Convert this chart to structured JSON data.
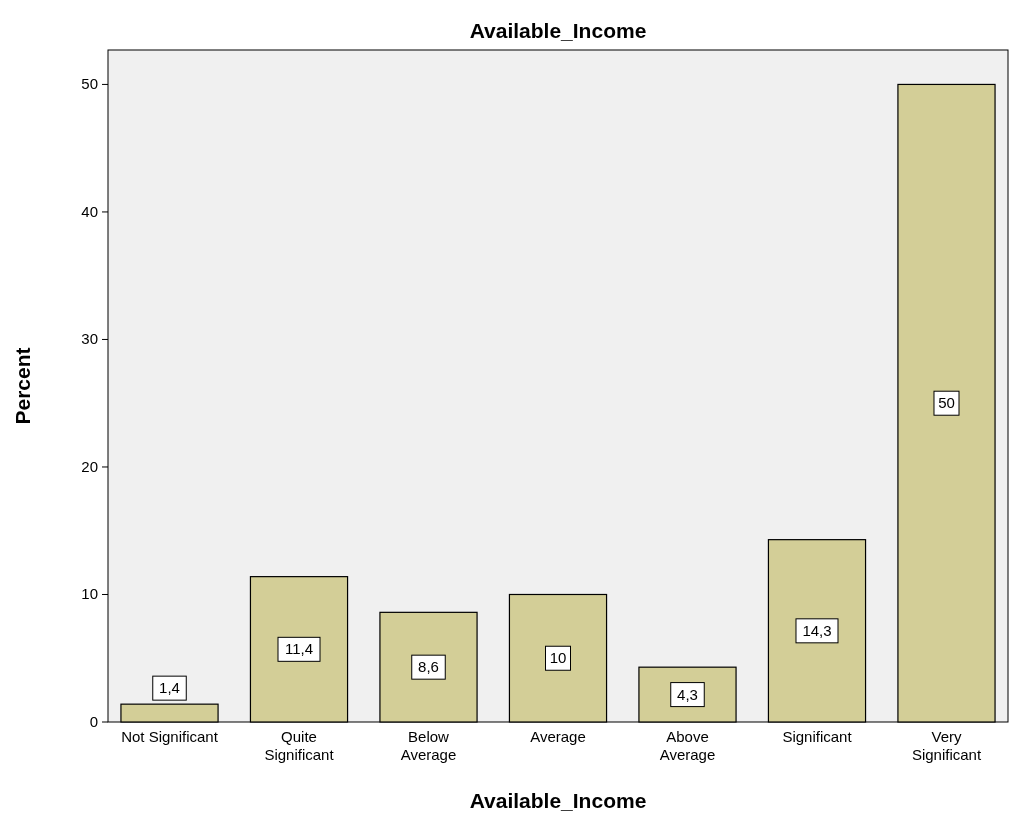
{
  "chart_data": {
    "type": "bar",
    "title": "Available_Income",
    "xlabel": "Available_Income",
    "ylabel": "Percent",
    "categories": [
      "Not Significant",
      "Quite\nSignificant",
      "Below\nAverage",
      "Average",
      "Above\nAverage",
      "Significant",
      "Very\nSignificant"
    ],
    "values": [
      1.4,
      11.4,
      8.6,
      10,
      4.3,
      14.3,
      50
    ],
    "value_labels": [
      "1,4",
      "11,4",
      "8,6",
      "10",
      "4,3",
      "14,3",
      "50"
    ],
    "color": "#d3ce97",
    "ylim": [
      0,
      52.7
    ],
    "yticks": [
      0,
      10,
      20,
      30,
      40,
      50
    ],
    "grid": false
  }
}
